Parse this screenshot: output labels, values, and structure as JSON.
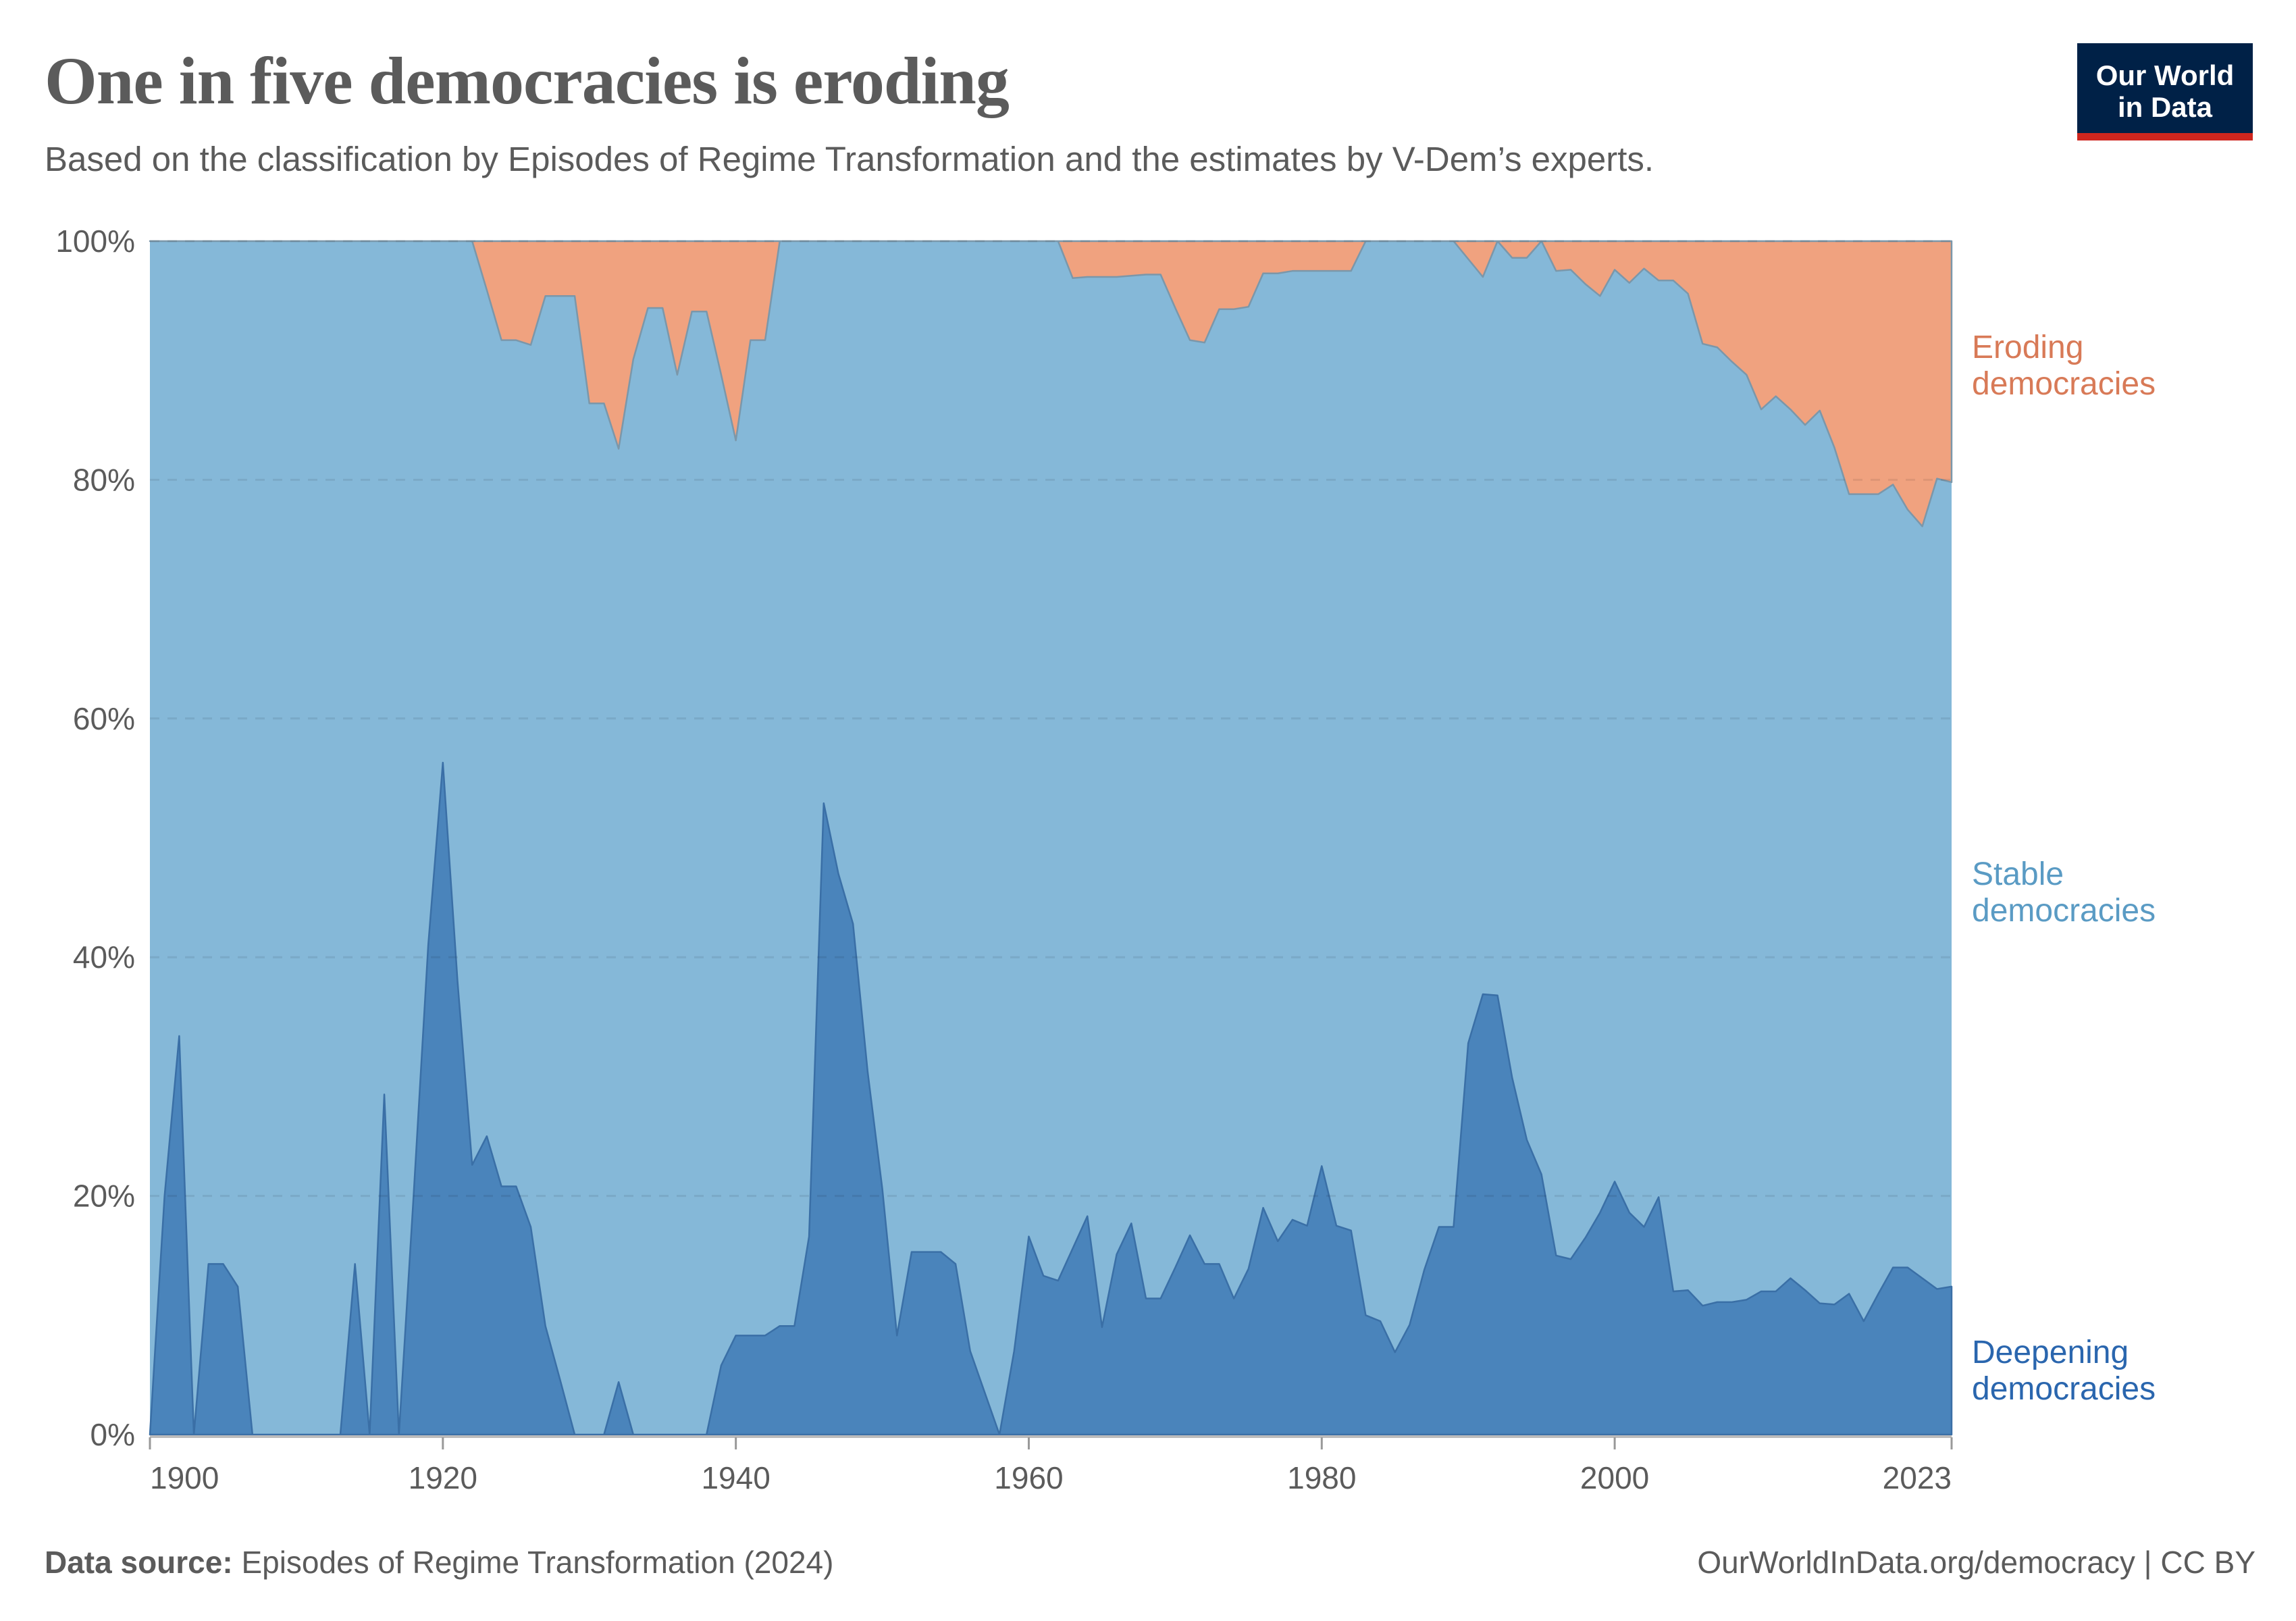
{
  "header": {
    "title": "One in five democracies is eroding",
    "subtitle": "Based on the classification by Episodes of Regime Transformation and the estimates by V-Dem’s experts.",
    "logo_line1": "Our World",
    "logo_line2": "in Data"
  },
  "footer": {
    "source_label": "Data source:",
    "source_text": "Episodes of Regime Transformation (2024)",
    "credit": "OurWorldInData.org/democracy | CC BY"
  },
  "colors": {
    "eroding_fill": "#f0a27f",
    "eroding_label": "#d87a57",
    "stable_fill": "#85b8d8",
    "stable_label": "#5a9bc4",
    "deepening_fill": "#4a84bb",
    "deepening_label": "#2a66ae",
    "text": "#5b5b5b"
  },
  "chart_data": {
    "type": "area",
    "stacked": true,
    "normalized": true,
    "title": "One in five democracies is eroding",
    "xlabel": "",
    "ylabel": "",
    "xlim": [
      1900,
      2023
    ],
    "ylim": [
      0,
      100
    ],
    "x_ticks": [
      "1900",
      "1920",
      "1940",
      "1960",
      "1980",
      "2000",
      "2023"
    ],
    "x_tick_values": [
      1900,
      1920,
      1940,
      1960,
      1980,
      2000,
      2023
    ],
    "y_ticks": [
      "0%",
      "20%",
      "40%",
      "60%",
      "80%",
      "100%"
    ],
    "y_tick_values": [
      0,
      20,
      40,
      60,
      80,
      100
    ],
    "grid": "horizontal-dashed",
    "legend": "right-inline-labels",
    "series": [
      {
        "name": "Deepening democracies",
        "label_lines": [
          "Deepening",
          "democracies"
        ],
        "color_key": "deepening",
        "values": [
          0,
          20,
          33.4,
          0,
          14.3,
          14.3,
          12.4,
          0,
          0,
          0,
          0,
          0,
          0,
          0,
          14.3,
          0,
          28.5,
          0,
          20,
          41,
          56.3,
          38,
          22.6,
          25,
          20.8,
          20.8,
          17.4,
          9.1,
          4.6,
          0,
          0,
          0,
          4.4,
          0,
          0,
          0,
          0,
          0,
          0,
          5.8,
          8.3,
          8.3,
          8.3,
          9.1,
          9.1,
          16.6,
          52.9,
          47,
          42.8,
          30.4,
          20.6,
          8.3,
          15.3,
          15.3,
          15.3,
          14.3,
          7,
          3.5,
          0,
          7,
          16.6,
          13.3,
          12.9,
          15.6,
          18.3,
          9,
          15.1,
          17.7,
          11.4,
          11.4,
          14,
          16.7,
          14.3,
          14.3,
          11.4,
          13.9,
          19,
          16.2,
          18,
          17.5,
          22.5,
          17.5,
          17.1,
          10,
          9.5,
          6.9,
          9.2,
          13.8,
          17.4,
          17.4,
          32.8,
          36.9,
          36.8,
          29.9,
          24.7,
          21.8,
          15,
          14.7,
          16.5,
          18.6,
          21.2,
          18.6,
          17.4,
          19.9,
          12,
          12.1,
          10.8,
          11.1,
          11.1,
          11.3,
          12,
          12,
          13.1,
          12.1,
          11,
          10.9,
          11.8,
          9.5,
          11.8,
          14,
          14,
          13.1,
          12.2,
          12.4
        ]
      },
      {
        "name": "Stable democracies",
        "label_lines": [
          "Stable",
          "democracies"
        ],
        "color_key": "stable",
        "values": "remainder (100 - deepening - eroding)"
      },
      {
        "name": "Eroding democracies",
        "label_lines": [
          "Eroding",
          "democracies"
        ],
        "color_key": "eroding",
        "values": [
          0,
          0,
          0,
          0,
          0,
          0,
          0,
          0,
          0,
          0,
          0,
          0,
          0,
          0,
          0,
          0,
          0,
          0,
          0,
          0,
          0,
          0,
          0,
          4.1,
          8.3,
          8.3,
          8.7,
          4.6,
          4.6,
          4.6,
          13.6,
          13.6,
          17.4,
          9.9,
          5.6,
          5.6,
          11.2,
          5.9,
          5.9,
          11.2,
          16.7,
          8.3,
          8.3,
          0,
          0,
          0,
          0,
          0,
          0,
          0,
          0,
          0,
          0,
          0,
          0,
          0,
          0,
          0,
          0,
          0,
          0,
          0,
          0,
          3.1,
          3,
          3,
          3,
          2.9,
          2.8,
          2.8,
          5.6,
          8.3,
          8.5,
          5.7,
          5.7,
          5.5,
          2.7,
          2.7,
          2.5,
          2.5,
          2.5,
          2.5,
          2.5,
          0,
          0,
          0,
          0,
          0,
          0,
          0,
          1.5,
          3,
          0,
          1.4,
          1.4,
          0,
          2.5,
          2.4,
          3.6,
          4.6,
          2.4,
          3.5,
          2.3,
          3.3,
          3.3,
          4.4,
          8.6,
          8.9,
          10.1,
          11.2,
          14.1,
          13,
          14.1,
          15.4,
          14.2,
          17.3,
          21.2,
          21.2,
          21.2,
          20.4,
          22.5,
          23.9,
          19.9,
          20.2
        ]
      }
    ]
  }
}
